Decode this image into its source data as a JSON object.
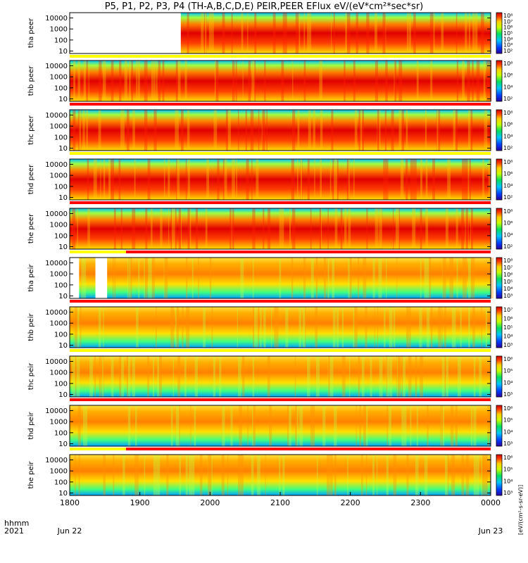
{
  "title": "P5, P1, P2, P3, P4 (TH-A,B,C,D,E) PEIR,PEER EFlux eV/(eV*cm²*sec*sr)",
  "x_axis": {
    "row1_label": "hhmm",
    "row2_label": "2021",
    "ticks": [
      "1800",
      "1900",
      "2000",
      "2100",
      "2200",
      "2300",
      "0000"
    ],
    "date_labels": [
      "Jun 22",
      "Jun 23"
    ]
  },
  "chart_data": {
    "type": "heatmap",
    "title": "P5, P1, P2, P3, P4 (TH-A,B,C,D,E) PEIR,PEER EFlux eV/(eV*cm²*sec*sr)",
    "xlabel": "hhmm 2021",
    "x_range_hhmm": [
      "1800",
      "0000"
    ],
    "colorbar_label": "[eV/(cm²-s-sr-eV)]",
    "panels": [
      {
        "probe": "tha",
        "species": "peer",
        "ylabel": "tha peer",
        "yticks": [
          "10",
          "100",
          "1000",
          "10000"
        ],
        "cbar_ticks": [
          "10²",
          "10³",
          "10⁴",
          "10⁵",
          "10⁶",
          "10⁷",
          "10⁸"
        ],
        "data_gap_hhmm": [
          "1800",
          "1935"
        ]
      },
      {
        "probe": "thb",
        "species": "peer",
        "ylabel": "thb peer",
        "yticks": [
          "10",
          "100",
          "1000",
          "10000"
        ],
        "cbar_ticks": [
          "10²",
          "10⁴",
          "10⁶",
          "10⁸"
        ]
      },
      {
        "probe": "thc",
        "species": "peer",
        "ylabel": "thc peer",
        "yticks": [
          "10",
          "100",
          "1000",
          "10000"
        ],
        "cbar_ticks": [
          "10²",
          "10⁴",
          "10⁶",
          "10⁸"
        ]
      },
      {
        "probe": "thd",
        "species": "peer",
        "ylabel": "thd peer",
        "yticks": [
          "10",
          "100",
          "1000",
          "10000"
        ],
        "cbar_ticks": [
          "10²",
          "10⁴",
          "10⁶",
          "10⁸"
        ]
      },
      {
        "probe": "the",
        "species": "peer",
        "ylabel": "the peer",
        "yticks": [
          "10",
          "100",
          "1000",
          "10000"
        ],
        "cbar_ticks": [
          "10²",
          "10⁴",
          "10⁶",
          "10⁸"
        ]
      },
      {
        "probe": "tha",
        "species": "peir",
        "ylabel": "tha peir",
        "yticks": [
          "10",
          "100",
          "1000",
          "10000"
        ],
        "cbar_ticks": [
          "10³",
          "10⁴",
          "10⁵",
          "10⁶",
          "10⁷",
          "10⁸"
        ],
        "data_gaps_hhmm": [
          [
            "1800",
            "1808"
          ],
          [
            "1822",
            "1832"
          ]
        ]
      },
      {
        "probe": "thb",
        "species": "peir",
        "ylabel": "thb peir",
        "yticks": [
          "10",
          "100",
          "1000",
          "10000"
        ],
        "cbar_ticks": [
          "10³",
          "10⁴",
          "10⁵",
          "10⁶",
          "10⁷"
        ]
      },
      {
        "probe": "thc",
        "species": "peir",
        "ylabel": "thc peir",
        "yticks": [
          "10",
          "100",
          "1000",
          "10000"
        ],
        "cbar_ticks": [
          "10³",
          "10⁴",
          "10⁵",
          "10⁶"
        ]
      },
      {
        "probe": "thd",
        "species": "peir",
        "ylabel": "thd peir",
        "yticks": [
          "10",
          "100",
          "1000",
          "10000"
        ],
        "cbar_ticks": [
          "10³",
          "10⁴",
          "10⁵",
          "10⁶"
        ]
      },
      {
        "probe": "the",
        "species": "peir",
        "ylabel": "the peir",
        "yticks": [
          "10",
          "100",
          "1000",
          "10000"
        ],
        "cbar_ticks": [
          "10³",
          "10⁴",
          "10⁵",
          "10⁶"
        ]
      }
    ]
  },
  "colors": {
    "background": "#ffffff",
    "mode_bar_red": "#ff0000",
    "mode_bar_yellow": "#ffff00",
    "mode_bar_black": "#000000"
  }
}
